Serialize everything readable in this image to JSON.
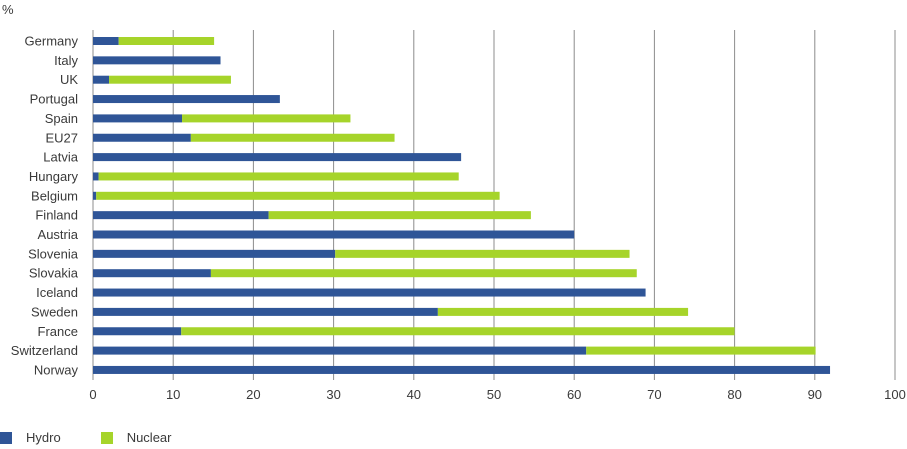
{
  "chart_data": {
    "type": "bar",
    "orientation": "horizontal",
    "stacked": true,
    "unit_label": "%",
    "categories": [
      "Germany",
      "Italy",
      "UK",
      "Portugal",
      "Spain",
      "EU27",
      "Latvia",
      "Hungary",
      "Belgium",
      "Finland",
      "Austria",
      "Slovenia",
      "Slovakia",
      "Iceland",
      "Sweden",
      "France",
      "Switzerland",
      "Norway"
    ],
    "series": [
      {
        "name": "Hydro",
        "color": "#2f5597",
        "values": [
          3.2,
          15.9,
          2.0,
          23.3,
          11.1,
          12.2,
          45.9,
          0.7,
          0.4,
          21.9,
          60.0,
          30.2,
          14.7,
          68.9,
          43.0,
          11.0,
          61.5,
          91.9
        ]
      },
      {
        "name": "Nuclear",
        "color": "#a6d42a",
        "values": [
          11.9,
          0,
          15.2,
          0,
          21.0,
          25.4,
          0,
          44.9,
          50.3,
          32.7,
          0,
          36.7,
          53.1,
          0,
          31.2,
          69.0,
          28.6,
          0
        ]
      }
    ],
    "xlim": [
      0,
      100
    ],
    "xticks": [
      0,
      10,
      20,
      30,
      40,
      50,
      60,
      70,
      80,
      90,
      100
    ],
    "grid": "vertical",
    "legend": "bottom-left"
  }
}
